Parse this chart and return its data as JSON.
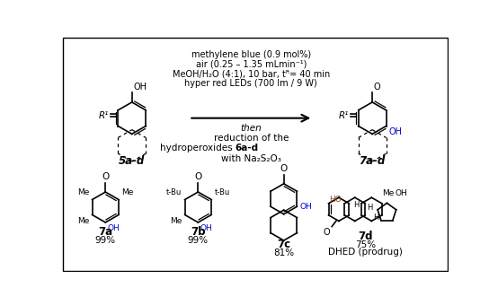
{
  "background_color": "#ffffff",
  "border_color": "#000000",
  "figsize": [
    5.54,
    3.4
  ],
  "dpi": 100,
  "reaction_conditions": [
    "methylene blue (0.9 mol%)",
    "air (0.25 – 1.35 mLmin⁻¹)",
    "MeOH/H₂O (4:1), 10 bar, tᴿ= 40 min",
    "hyper red LEDs (700 lm / 9 W)"
  ],
  "arrow_color": "#000000",
  "text_color": "#000000",
  "blue_color": "#0000cd",
  "ho_color": "#8B4513"
}
